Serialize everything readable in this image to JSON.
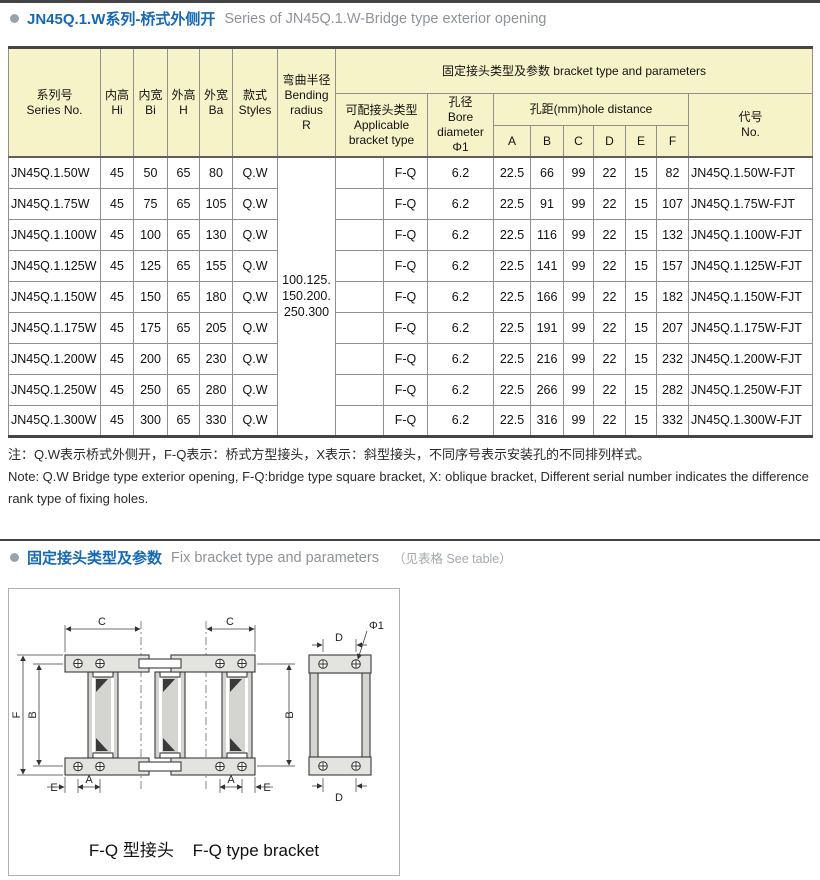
{
  "header": {
    "title_zh": "JN45Q.1.W系列-桥式外侧开",
    "title_en": "Series of JN45Q.1.W-Bridge type exterior opening"
  },
  "table": {
    "group_header": "固定接头类型及参数 bracket type and parameters",
    "headers": {
      "series": [
        "系列号",
        "Series No."
      ],
      "inner_height": [
        "内高",
        "Hi"
      ],
      "inner_width": [
        "内宽",
        "Bi"
      ],
      "outer_height": [
        "外高",
        "H"
      ],
      "outer_width": [
        "外宽",
        "Ba"
      ],
      "styles": [
        "款式",
        "Styles"
      ],
      "bending_radius": [
        "弯曲半径",
        "Bending",
        "radius",
        "R"
      ],
      "bracket_type": [
        "可配接头类型",
        "Applicable",
        "bracket type"
      ],
      "bore": [
        "孔径",
        "Bore diameter",
        "Φ1"
      ],
      "hole_distance": "孔距(mm)hole distance",
      "hole_cols": [
        "A",
        "B",
        "C",
        "D",
        "E",
        "F"
      ],
      "code": [
        "代号",
        "No."
      ]
    },
    "bending_radius_values": [
      "100.125.",
      "150.200.",
      "250.300"
    ],
    "rows": [
      {
        "series": "JN45Q.1.50W",
        "hi": "45",
        "bi": "50",
        "h": "65",
        "ba": "80",
        "style": "Q.W",
        "bracket": "F-Q",
        "bore": "6.2",
        "A": "22.5",
        "B": "66",
        "C": "99",
        "D": "22",
        "E": "15",
        "F": "82",
        "code": "JN45Q.1.50W-FJT"
      },
      {
        "series": "JN45Q.1.75W",
        "hi": "45",
        "bi": "75",
        "h": "65",
        "ba": "105",
        "style": "Q.W",
        "bracket": "F-Q",
        "bore": "6.2",
        "A": "22.5",
        "B": "91",
        "C": "99",
        "D": "22",
        "E": "15",
        "F": "107",
        "code": "JN45Q.1.75W-FJT"
      },
      {
        "series": "JN45Q.1.100W",
        "hi": "45",
        "bi": "100",
        "h": "65",
        "ba": "130",
        "style": "Q.W",
        "bracket": "F-Q",
        "bore": "6.2",
        "A": "22.5",
        "B": "116",
        "C": "99",
        "D": "22",
        "E": "15",
        "F": "132",
        "code": "JN45Q.1.100W-FJT"
      },
      {
        "series": "JN45Q.1.125W",
        "hi": "45",
        "bi": "125",
        "h": "65",
        "ba": "155",
        "style": "Q.W",
        "bracket": "F-Q",
        "bore": "6.2",
        "A": "22.5",
        "B": "141",
        "C": "99",
        "D": "22",
        "E": "15",
        "F": "157",
        "code": "JN45Q.1.125W-FJT"
      },
      {
        "series": "JN45Q.1.150W",
        "hi": "45",
        "bi": "150",
        "h": "65",
        "ba": "180",
        "style": "Q.W",
        "bracket": "F-Q",
        "bore": "6.2",
        "A": "22.5",
        "B": "166",
        "C": "99",
        "D": "22",
        "E": "15",
        "F": "182",
        "code": "JN45Q.1.150W-FJT"
      },
      {
        "series": "JN45Q.1.175W",
        "hi": "45",
        "bi": "175",
        "h": "65",
        "ba": "205",
        "style": "Q.W",
        "bracket": "F-Q",
        "bore": "6.2",
        "A": "22.5",
        "B": "191",
        "C": "99",
        "D": "22",
        "E": "15",
        "F": "207",
        "code": "JN45Q.1.175W-FJT"
      },
      {
        "series": "JN45Q.1.200W",
        "hi": "45",
        "bi": "200",
        "h": "65",
        "ba": "230",
        "style": "Q.W",
        "bracket": "F-Q",
        "bore": "6.2",
        "A": "22.5",
        "B": "216",
        "C": "99",
        "D": "22",
        "E": "15",
        "F": "232",
        "code": "JN45Q.1.200W-FJT"
      },
      {
        "series": "JN45Q.1.250W",
        "hi": "45",
        "bi": "250",
        "h": "65",
        "ba": "280",
        "style": "Q.W",
        "bracket": "F-Q",
        "bore": "6.2",
        "A": "22.5",
        "B": "266",
        "C": "99",
        "D": "22",
        "E": "15",
        "F": "282",
        "code": "JN45Q.1.250W-FJT"
      },
      {
        "series": "JN45Q.1.300W",
        "hi": "45",
        "bi": "300",
        "h": "65",
        "ba": "330",
        "style": "Q.W",
        "bracket": "F-Q",
        "bore": "6.2",
        "A": "22.5",
        "B": "316",
        "C": "99",
        "D": "22",
        "E": "15",
        "F": "332",
        "code": "JN45Q.1.300W-FJT"
      }
    ]
  },
  "notes": {
    "zh": "注：Q.W表示桥式外侧开，F-Q表示：桥式方型接头，X表示：斜型接头，不同序号表示安装孔的不同排列样式。",
    "en_lines": [
      "Note: Q.W Bridge type exterior opening, F-Q:bridge type square bracket, X: oblique bracket, Different serial number indicates the difference",
      "rank type of fixing holes."
    ]
  },
  "section2": {
    "title_zh": "固定接头类型及参数",
    "title_en": "Fix bracket type and parameters",
    "see_table": "（见表格 See table）"
  },
  "diagram": {
    "caption_zh": "F-Q 型接头",
    "caption_en": "F-Q type bracket",
    "labels": {
      "c": "C",
      "f": "F",
      "b": "B",
      "a": "A",
      "e": "E",
      "d": "D",
      "phi": "Φ1"
    }
  },
  "colors": {
    "accent_blue": "#1568b4",
    "header_yellow": "#f7f3c9",
    "border_gray": "#8f8f8f",
    "dark_rule": "#454545",
    "gray_text": "#8e9398"
  }
}
